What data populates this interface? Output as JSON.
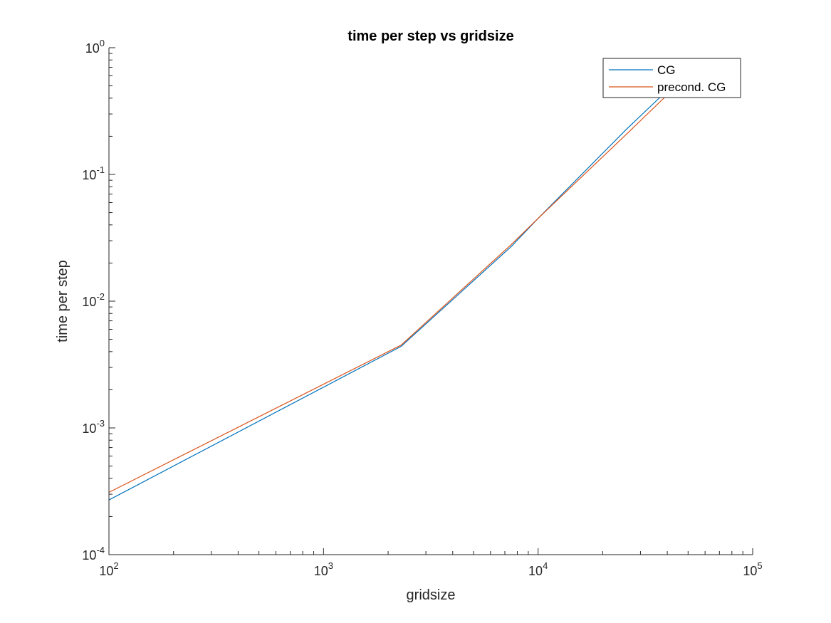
{
  "chart_data": {
    "type": "line",
    "title": "time per step vs gridsize",
    "xlabel": "gridsize",
    "ylabel": "time per step",
    "xscale": "log",
    "yscale": "log",
    "xlim": [
      100,
      100000
    ],
    "ylim": [
      0.0001,
      1
    ],
    "x_ticks": [
      {
        "value": 100,
        "base": "10",
        "exp": "2"
      },
      {
        "value": 1000,
        "base": "10",
        "exp": "3"
      },
      {
        "value": 10000,
        "base": "10",
        "exp": "4"
      },
      {
        "value": 100000,
        "base": "10",
        "exp": "5"
      }
    ],
    "y_ticks": [
      {
        "value": 0.0001,
        "base": "10",
        "exp": "-4"
      },
      {
        "value": 0.001,
        "base": "10",
        "exp": "-3"
      },
      {
        "value": 0.01,
        "base": "10",
        "exp": "-2"
      },
      {
        "value": 0.1,
        "base": "10",
        "exp": "-1"
      },
      {
        "value": 1,
        "base": "10",
        "exp": "0"
      }
    ],
    "grid": false,
    "legend_position": "top-right",
    "series": [
      {
        "name": "CG",
        "color": "#0072BD",
        "x": [
          100,
          2300,
          7500,
          10000,
          26000,
          40000
        ],
        "y": [
          0.00027,
          0.0044,
          0.027,
          0.045,
          0.23,
          0.46
        ]
      },
      {
        "name": "precond. CG",
        "color": "#D95319",
        "x": [
          100,
          2300,
          7500,
          10000,
          26000,
          42000
        ],
        "y": [
          0.00031,
          0.0045,
          0.028,
          0.045,
          0.21,
          0.46
        ]
      }
    ]
  }
}
